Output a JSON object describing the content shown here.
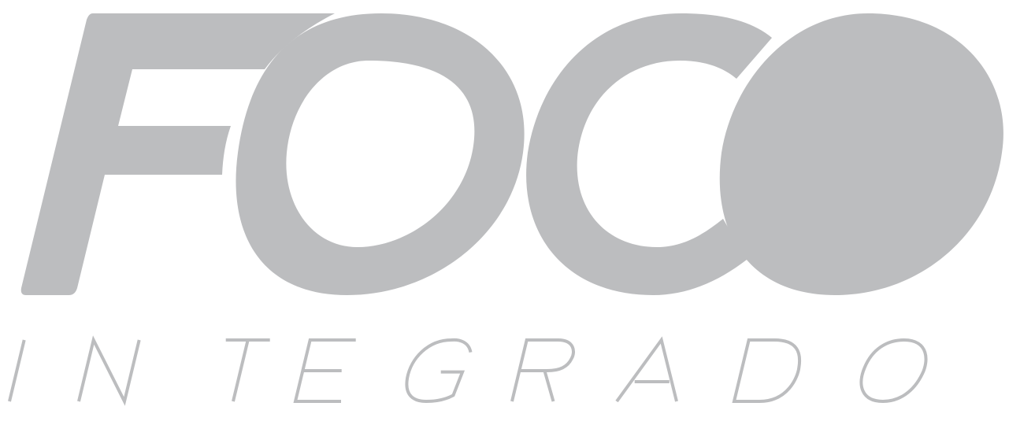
{
  "logo": {
    "wordmark": "FOCO",
    "tagline": "INTEGRADO",
    "color": "#bcbdbf",
    "background": "#ffffff"
  }
}
